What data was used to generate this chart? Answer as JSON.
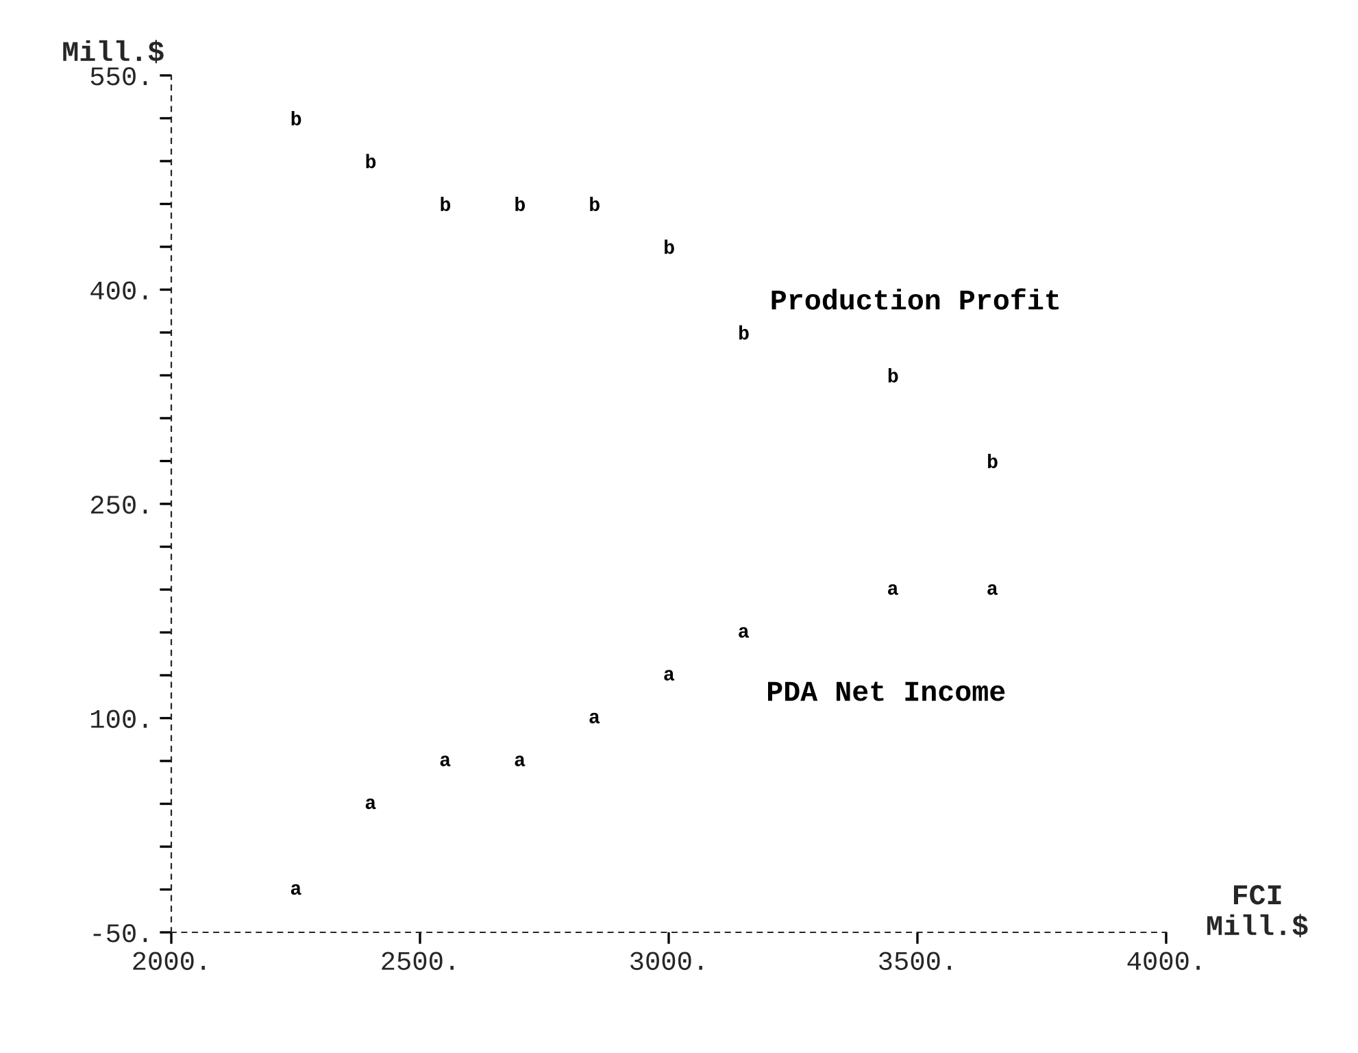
{
  "chart_data": {
    "type": "scatter",
    "xlabel": "FCI\nMill.$",
    "ylabel": "Mill.$",
    "series": [
      {
        "name": "PDA Net Income",
        "color": "#000000",
        "x": [
          2250,
          2400,
          2550,
          2700,
          2850,
          3000,
          3150,
          3450,
          3650
        ],
        "values": [
          -20,
          40,
          70,
          70,
          100,
          130,
          160,
          190,
          190
        ]
      },
      {
        "name": "Production Profit",
        "color": "#000000",
        "x": [
          2250,
          2400,
          2550,
          2700,
          2850,
          3000,
          3150,
          3450,
          3650
        ],
        "values": [
          520,
          490,
          460,
          460,
          460,
          430,
          370,
          340,
          280
        ]
      }
    ],
    "xlim": [
      2000,
      4000
    ],
    "ylim": [
      -50,
      550
    ],
    "xticks": [
      {
        "value": 2000,
        "label": "2000."
      },
      {
        "value": 2500,
        "label": "2500."
      },
      {
        "value": 3000,
        "label": "3000."
      },
      {
        "value": 3500,
        "label": "3500."
      },
      {
        "value": 4000,
        "label": "4000."
      }
    ],
    "yticks": [
      {
        "value": -50,
        "label": "-50."
      },
      {
        "value": -20,
        "label": null
      },
      {
        "value": 10,
        "label": null
      },
      {
        "value": 40,
        "label": null
      },
      {
        "value": 70,
        "label": null
      },
      {
        "value": 100,
        "label": "100."
      },
      {
        "value": 130,
        "label": null
      },
      {
        "value": 160,
        "label": null
      },
      {
        "value": 190,
        "label": null
      },
      {
        "value": 220,
        "label": null
      },
      {
        "value": 250,
        "label": "250."
      },
      {
        "value": 280,
        "label": null
      },
      {
        "value": 310,
        "label": null
      },
      {
        "value": 340,
        "label": null
      },
      {
        "value": 370,
        "label": null
      },
      {
        "value": 400,
        "label": "400."
      },
      {
        "value": 430,
        "label": null
      },
      {
        "value": 460,
        "label": null
      },
      {
        "value": 490,
        "label": null
      },
      {
        "value": 520,
        "label": null
      },
      {
        "value": 550,
        "label": "550."
      }
    ],
    "grid": false,
    "legend": false
  }
}
